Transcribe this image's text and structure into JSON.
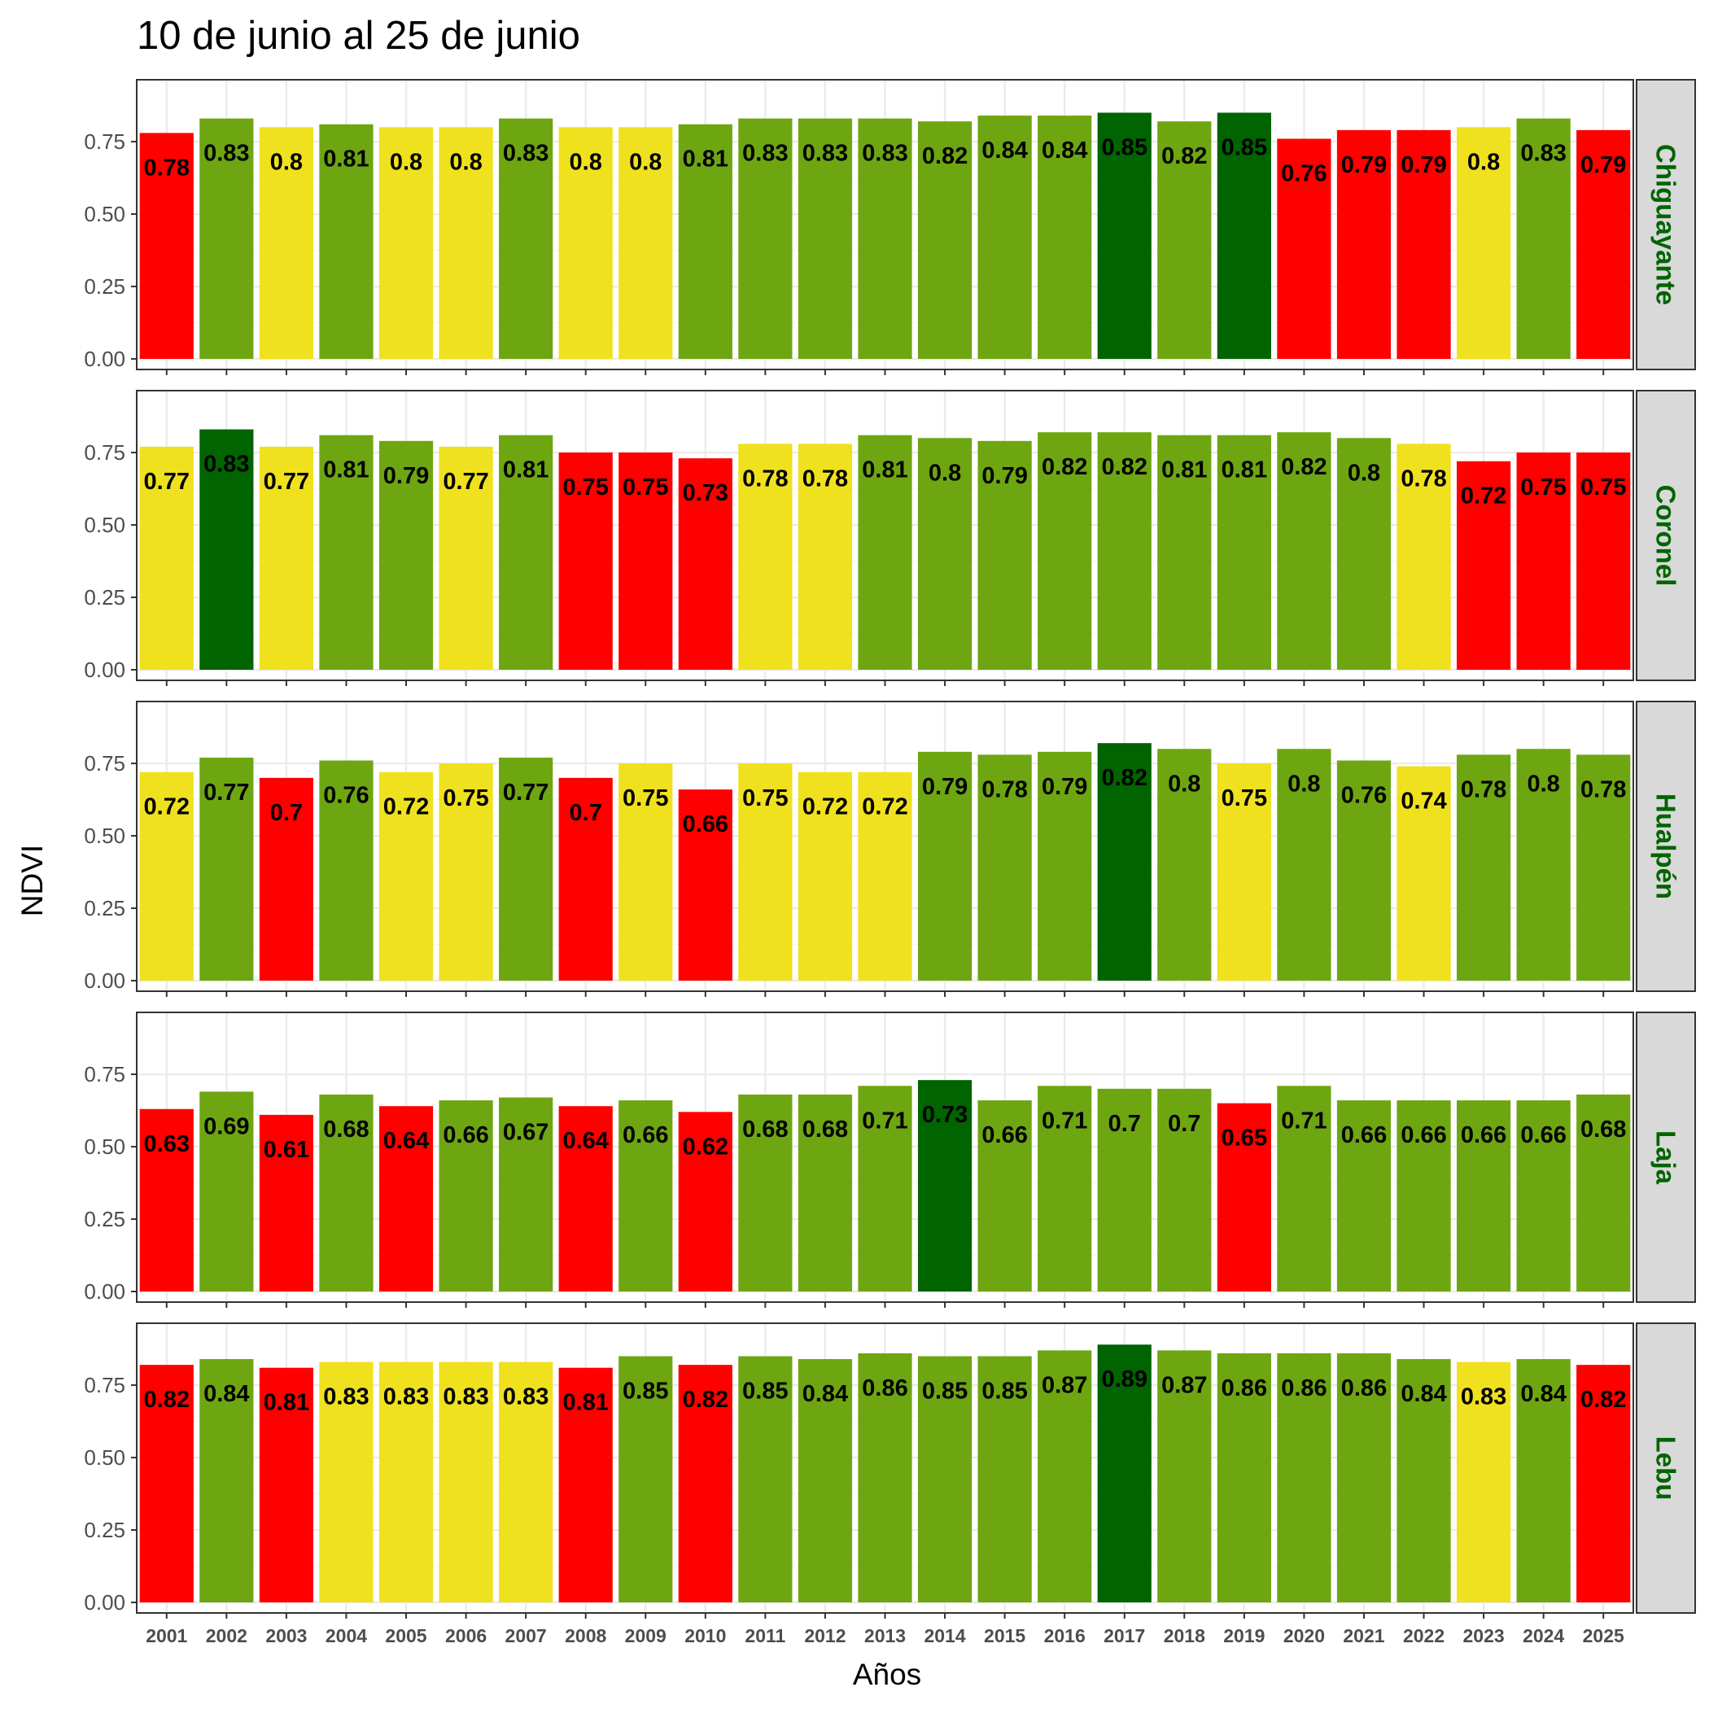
{
  "chart_data": {
    "type": "bar",
    "title": "10 de junio al 25 de junio",
    "xlabel": "Años",
    "ylabel": "NDVI",
    "ylim": [
      0,
      0.93
    ],
    "yticks": [
      "0.00",
      "0.25",
      "0.50",
      "0.75"
    ],
    "ytick_values": [
      0,
      0.25,
      0.5,
      0.75
    ],
    "grid": true,
    "categories": [
      "2001",
      "2002",
      "2003",
      "2004",
      "2005",
      "2006",
      "2007",
      "2008",
      "2009",
      "2010",
      "2011",
      "2012",
      "2013",
      "2014",
      "2015",
      "2016",
      "2017",
      "2018",
      "2019",
      "2020",
      "2021",
      "2022",
      "2023",
      "2024",
      "2025"
    ],
    "colors": {
      "red": "#ff0000",
      "yellow": "#f0e11e",
      "green": "#6ea612",
      "darkgreen": "#006400",
      "strip_fill": "#d9d9d9",
      "strip_text": "#006400",
      "grid_major": "#ebebeb",
      "grid_minor": "#f5f5f5"
    },
    "panels": [
      {
        "name": "Chiguayante",
        "values": [
          0.78,
          0.83,
          0.8,
          0.81,
          0.8,
          0.8,
          0.83,
          0.8,
          0.8,
          0.81,
          0.83,
          0.83,
          0.83,
          0.82,
          0.84,
          0.84,
          0.85,
          0.82,
          0.85,
          0.76,
          0.79,
          0.79,
          0.8,
          0.83,
          0.79
        ],
        "labels": [
          "0.78",
          "0.83",
          "0.8",
          "0.81",
          "0.8",
          "0.8",
          "0.83",
          "0.8",
          "0.8",
          "0.81",
          "0.83",
          "0.83",
          "0.83",
          "0.82",
          "0.84",
          "0.84",
          "0.85",
          "0.82",
          "0.85",
          "0.76",
          "0.79",
          "0.79",
          "0.8",
          "0.83",
          "0.79"
        ],
        "colors": [
          "red",
          "green",
          "yellow",
          "green",
          "yellow",
          "yellow",
          "green",
          "yellow",
          "yellow",
          "green",
          "green",
          "green",
          "green",
          "green",
          "green",
          "green",
          "darkgreen",
          "green",
          "darkgreen",
          "red",
          "red",
          "red",
          "yellow",
          "green",
          "red"
        ]
      },
      {
        "name": "Coronel",
        "values": [
          0.77,
          0.83,
          0.77,
          0.81,
          0.79,
          0.77,
          0.81,
          0.75,
          0.75,
          0.73,
          0.78,
          0.78,
          0.81,
          0.8,
          0.79,
          0.82,
          0.82,
          0.81,
          0.81,
          0.82,
          0.8,
          0.78,
          0.72,
          0.75,
          0.75
        ],
        "labels": [
          "0.77",
          "0.83",
          "0.77",
          "0.81",
          "0.79",
          "0.77",
          "0.81",
          "0.75",
          "0.75",
          "0.73",
          "0.78",
          "0.78",
          "0.81",
          "0.8",
          "0.79",
          "0.82",
          "0.82",
          "0.81",
          "0.81",
          "0.82",
          "0.8",
          "0.78",
          "0.72",
          "0.75",
          "0.75"
        ],
        "colors": [
          "yellow",
          "darkgreen",
          "yellow",
          "green",
          "green",
          "yellow",
          "green",
          "red",
          "red",
          "red",
          "yellow",
          "yellow",
          "green",
          "green",
          "green",
          "green",
          "green",
          "green",
          "green",
          "green",
          "green",
          "yellow",
          "red",
          "red",
          "red"
        ]
      },
      {
        "name": "Hualpén",
        "values": [
          0.72,
          0.77,
          0.7,
          0.76,
          0.72,
          0.75,
          0.77,
          0.7,
          0.75,
          0.66,
          0.75,
          0.72,
          0.72,
          0.79,
          0.78,
          0.79,
          0.82,
          0.8,
          0.75,
          0.8,
          0.76,
          0.74,
          0.78,
          0.8,
          0.78
        ],
        "labels": [
          "0.72",
          "0.77",
          "0.7",
          "0.76",
          "0.72",
          "0.75",
          "0.77",
          "0.7",
          "0.75",
          "0.66",
          "0.75",
          "0.72",
          "0.72",
          "0.79",
          "0.78",
          "0.79",
          "0.82",
          "0.8",
          "0.75",
          "0.8",
          "0.76",
          "0.74",
          "0.78",
          "0.8",
          "0.78"
        ],
        "colors": [
          "yellow",
          "green",
          "red",
          "green",
          "yellow",
          "yellow",
          "green",
          "red",
          "yellow",
          "red",
          "yellow",
          "yellow",
          "yellow",
          "green",
          "green",
          "green",
          "darkgreen",
          "green",
          "yellow",
          "green",
          "green",
          "yellow",
          "green",
          "green",
          "green"
        ]
      },
      {
        "name": "Laja",
        "values": [
          0.63,
          0.69,
          0.61,
          0.68,
          0.64,
          0.66,
          0.67,
          0.64,
          0.66,
          0.62,
          0.68,
          0.68,
          0.71,
          0.73,
          0.66,
          0.71,
          0.7,
          0.7,
          0.65,
          0.71,
          0.66,
          0.66,
          0.66,
          0.66,
          0.68
        ],
        "labels": [
          "0.63",
          "0.69",
          "0.61",
          "0.68",
          "0.64",
          "0.66",
          "0.67",
          "0.64",
          "0.66",
          "0.62",
          "0.68",
          "0.68",
          "0.71",
          "0.73",
          "0.66",
          "0.71",
          "0.7",
          "0.7",
          "0.65",
          "0.71",
          "0.66",
          "0.66",
          "0.66",
          "0.66",
          "0.68"
        ],
        "colors": [
          "red",
          "green",
          "red",
          "green",
          "red",
          "green",
          "green",
          "red",
          "green",
          "red",
          "green",
          "green",
          "green",
          "darkgreen",
          "green",
          "green",
          "green",
          "green",
          "red",
          "green",
          "green",
          "green",
          "green",
          "green",
          "green"
        ]
      },
      {
        "name": "Lebu",
        "values": [
          0.82,
          0.84,
          0.81,
          0.83,
          0.83,
          0.83,
          0.83,
          0.81,
          0.85,
          0.82,
          0.85,
          0.84,
          0.86,
          0.85,
          0.85,
          0.87,
          0.89,
          0.87,
          0.86,
          0.86,
          0.86,
          0.84,
          0.83,
          0.84,
          0.82
        ],
        "labels": [
          "0.82",
          "0.84",
          "0.81",
          "0.83",
          "0.83",
          "0.83",
          "0.83",
          "0.81",
          "0.85",
          "0.82",
          "0.85",
          "0.84",
          "0.86",
          "0.85",
          "0.85",
          "0.87",
          "0.89",
          "0.87",
          "0.86",
          "0.86",
          "0.86",
          "0.84",
          "0.83",
          "0.84",
          "0.82"
        ],
        "colors": [
          "red",
          "green",
          "red",
          "yellow",
          "yellow",
          "yellow",
          "yellow",
          "red",
          "green",
          "red",
          "green",
          "green",
          "green",
          "green",
          "green",
          "green",
          "darkgreen",
          "green",
          "green",
          "green",
          "green",
          "green",
          "yellow",
          "green",
          "red"
        ]
      }
    ]
  }
}
